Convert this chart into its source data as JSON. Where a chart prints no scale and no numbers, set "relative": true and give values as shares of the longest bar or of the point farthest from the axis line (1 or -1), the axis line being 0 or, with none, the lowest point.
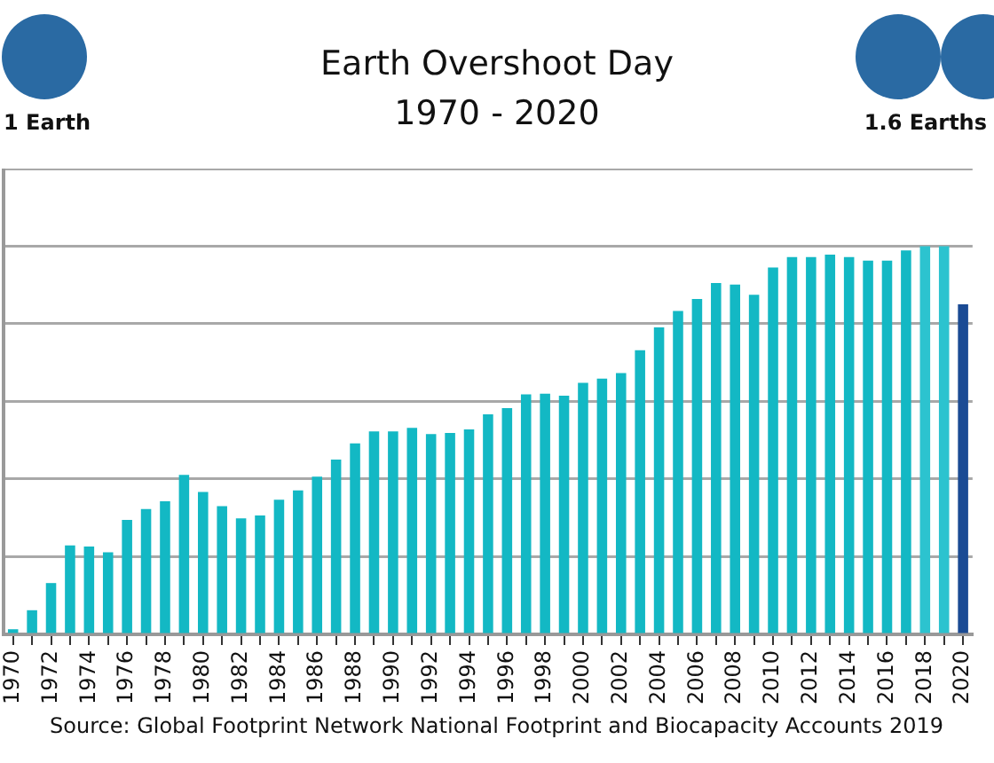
{
  "chart_data": {
    "type": "bar",
    "title": "Earth Overshoot Day",
    "subtitle": "1970 - 2020",
    "relative": true,
    "grid": "y",
    "legend": false,
    "categories": [
      "1970",
      null,
      "1972",
      null,
      "1974",
      null,
      "1976",
      null,
      "1978",
      null,
      "1980",
      null,
      "1982",
      null,
      "1984",
      null,
      "1986",
      null,
      "1988",
      null,
      "1990",
      null,
      "1992",
      null,
      "1994",
      null,
      "1996",
      null,
      "1998",
      null,
      "2000",
      null,
      "2002",
      null,
      "2004",
      null,
      "2006",
      null,
      "2008",
      null,
      "2010",
      null,
      "2012",
      null,
      "2014",
      null,
      "2016",
      null,
      "2018",
      null,
      "2020"
    ],
    "values": [
      0.013,
      0.062,
      0.132,
      0.229,
      0.226,
      0.211,
      0.295,
      0.323,
      0.343,
      0.411,
      0.367,
      0.33,
      0.299,
      0.306,
      0.347,
      0.371,
      0.406,
      0.45,
      0.492,
      0.523,
      0.523,
      0.532,
      0.516,
      0.519,
      0.528,
      0.567,
      0.583,
      0.618,
      0.62,
      0.615,
      0.648,
      0.659,
      0.673,
      0.732,
      0.791,
      0.833,
      0.864,
      0.905,
      0.901,
      0.875,
      0.945,
      0.972,
      0.972,
      0.978,
      0.972,
      0.963,
      0.963,
      0.989,
      1,
      1,
      0.85
    ],
    "colors": [
      "#13b8c4",
      "#13b8c4",
      "#13b8c4",
      "#13b8c4",
      "#13b8c4",
      "#13b8c4",
      "#13b8c4",
      "#13b8c4",
      "#13b8c4",
      "#13b8c4",
      "#13b8c4",
      "#13b8c4",
      "#13b8c4",
      "#13b8c4",
      "#13b8c4",
      "#13b8c4",
      "#13b8c4",
      "#13b8c4",
      "#13b8c4",
      "#13b8c4",
      "#13b8c4",
      "#13b8c4",
      "#13b8c4",
      "#13b8c4",
      "#13b8c4",
      "#13b8c4",
      "#13b8c4",
      "#13b8c4",
      "#13b8c4",
      "#13b8c4",
      "#13b8c4",
      "#13b8c4",
      "#13b8c4",
      "#13b8c4",
      "#13b8c4",
      "#13b8c4",
      "#13b8c4",
      "#13b8c4",
      "#13b8c4",
      "#13b8c4",
      "#13b8c4",
      "#13b8c4",
      "#13b8c4",
      "#13b8c4",
      "#13b8c4",
      "#13b8c4",
      "#13b8c4",
      "#13b8c4",
      "#2cc3cf",
      "#2cc3cf",
      "#1b4b94"
    ],
    "annotations": [
      "1 Earth",
      "1.6 Earths",
      "Source: Global Footprint Network National Footprint and Biocapacity Accounts 2019"
    ]
  }
}
